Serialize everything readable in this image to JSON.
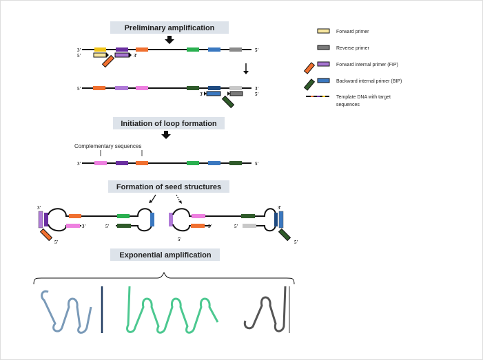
{
  "steps": {
    "preliminary": "Preliminary amplification",
    "initiation": "Initiation of loop formation",
    "complementary": "Complementary sequences",
    "seed": "Formation of seed structures",
    "exponential": "Exponential amplification"
  },
  "ends": {
    "three": "3'",
    "five": "5'"
  },
  "legend": [
    {
      "label": "Forward primer",
      "color": "#f3dc8a"
    },
    {
      "label": "Reverse primer",
      "color": "#7a7a7a"
    },
    {
      "label": "Forward internal primer (FIP)",
      "color": "#a675d0"
    },
    {
      "label": "Backward internal primer (BIP)",
      "color": "#3a78c0"
    },
    {
      "label": "Template DNA with target",
      "label2": "sequences",
      "color": "#111111"
    }
  ],
  "colors": {
    "yellow": "#f0c419",
    "purple": "#6a2fa0",
    "orange": "#f07030",
    "green": "#2ab050",
    "blue": "#3a78c0",
    "gray": "#8a8a8a",
    "lightpurple": "#b07ad8",
    "pink": "#ee80e0",
    "darkgreen": "#2f5a2a",
    "darkblue": "#1f4a80",
    "lightgray": "#c8c8c8",
    "boxbg": "#dde3ea",
    "loopblue": "#7a9ab8",
    "loopgreen": "#4cc890",
    "loopgray": "#555555"
  }
}
